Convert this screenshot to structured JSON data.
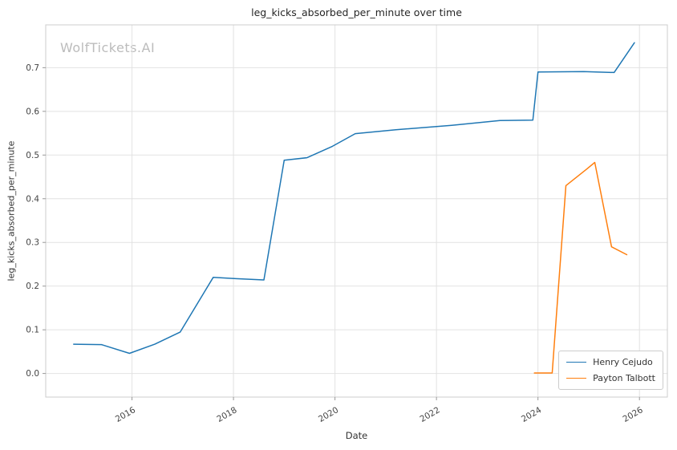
{
  "watermark": {
    "text": "WolfTickets.AI",
    "color": "#bcbcbc"
  },
  "style": {
    "background": "#ffffff",
    "grid_color": "#e2e2e2",
    "spine_color": "#cccccc",
    "tick_color": "#999999",
    "title_color": "#262626",
    "label_color": "#333333"
  },
  "chart_data": {
    "type": "line",
    "title": "leg_kicks_absorbed_per_minute over time",
    "xlabel": "Date",
    "ylabel": "leg_kicks_absorbed_per_minute",
    "grid": true,
    "legend_position": "lower right",
    "xlim": [
      2014.3,
      2026.55
    ],
    "ylim": [
      -0.054,
      0.798
    ],
    "x_tick_values": [
      2016,
      2018,
      2020,
      2022,
      2024,
      2026
    ],
    "x_tick_labels": [
      "2016",
      "2018",
      "2020",
      "2022",
      "2024",
      "2026"
    ],
    "y_tick_values": [
      0.0,
      0.1,
      0.2,
      0.3,
      0.4,
      0.5,
      0.6,
      0.7
    ],
    "y_tick_labels": [
      "0.0",
      "0.1",
      "0.2",
      "0.3",
      "0.4",
      "0.5",
      "0.6",
      "0.7"
    ],
    "series": [
      {
        "name": "Henry Cejudo",
        "color": "#1f77b4",
        "points": [
          [
            2014.85,
            0.067
          ],
          [
            2015.4,
            0.066
          ],
          [
            2015.95,
            0.046
          ],
          [
            2016.45,
            0.067
          ],
          [
            2016.95,
            0.095
          ],
          [
            2017.6,
            0.22
          ],
          [
            2018.05,
            0.217
          ],
          [
            2018.6,
            0.214
          ],
          [
            2019.0,
            0.488
          ],
          [
            2019.45,
            0.494
          ],
          [
            2019.95,
            0.52
          ],
          [
            2020.4,
            0.549
          ],
          [
            2021.2,
            0.558
          ],
          [
            2022.3,
            0.568
          ],
          [
            2023.25,
            0.579
          ],
          [
            2023.9,
            0.58
          ],
          [
            2024.0,
            0.69
          ],
          [
            2024.9,
            0.691
          ],
          [
            2025.15,
            0.69
          ],
          [
            2025.5,
            0.689
          ],
          [
            2025.9,
            0.757
          ]
        ]
      },
      {
        "name": "Payton Talbott",
        "color": "#ff7f0e",
        "points": [
          [
            2023.93,
            0.001
          ],
          [
            2024.28,
            0.001
          ],
          [
            2024.55,
            0.43
          ],
          [
            2024.95,
            0.467
          ],
          [
            2025.12,
            0.483
          ],
          [
            2025.45,
            0.29
          ],
          [
            2025.75,
            0.272
          ]
        ]
      }
    ]
  }
}
